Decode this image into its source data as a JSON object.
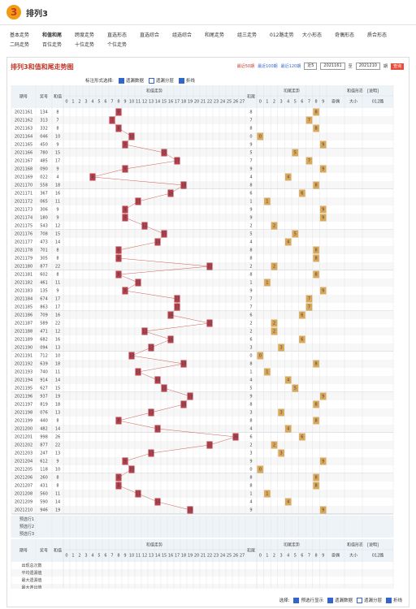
{
  "header": {
    "logo": "3",
    "title": "排列3"
  },
  "nav": [
    "基本走势",
    "和值和尾",
    "跨度走势",
    "直选形态",
    "直选综合",
    "组选综合",
    "和尾走势",
    "组三走势",
    "012路走势",
    "大小形态",
    "奇偶形态",
    "质合形态",
    "二码走势",
    "百位走势",
    "十位走势",
    "个位走势"
  ],
  "panel": {
    "title": "排列3和值和尾走势图",
    "periods": [
      "最近50期",
      "最近100期",
      "最近120期"
    ],
    "select": "近5",
    "from": "2021161",
    "to_label": "至",
    "to": "2021210",
    "period_unit": "期",
    "button": "查询"
  },
  "options": {
    "label": "标注形式选择:",
    "items": [
      "遗漏数据",
      "遗漏分层",
      "折线"
    ]
  },
  "table": {
    "headers": {
      "issue": "期号",
      "number": "奖号",
      "sum": "和值",
      "sum_trend": "和值走势",
      "tail": "和尾",
      "tail_trend": "和尾走势",
      "shape": "和值形态",
      "shape_note": "[说明]",
      "odd_even": "奇偶",
      "big_small": "大小",
      "route": "012路"
    },
    "sum_columns": [
      0,
      1,
      2,
      3,
      4,
      5,
      6,
      7,
      8,
      9,
      10,
      11,
      12,
      13,
      14,
      15,
      16,
      17,
      18,
      19,
      20,
      21,
      22,
      23,
      24,
      25,
      26,
      27
    ],
    "tail_columns": [
      0,
      1,
      2,
      3,
      4,
      5,
      6,
      7,
      8,
      9
    ],
    "rows": [
      [
        "2021161",
        "134",
        8,
        8
      ],
      [
        "2021162",
        "313",
        7,
        7
      ],
      [
        "2021163",
        "332",
        8,
        8
      ],
      [
        "2021164",
        "046",
        10,
        0
      ],
      [
        "2021165",
        "450",
        9,
        9
      ],
      [
        "2021166",
        "780",
        15,
        5
      ],
      [
        "2021167",
        "485",
        17,
        7
      ],
      [
        "2021168",
        "090",
        9,
        9
      ],
      [
        "2021169",
        "022",
        4,
        4
      ],
      [
        "2021170",
        "558",
        18,
        8
      ],
      [
        "2021171",
        "367",
        16,
        6
      ],
      [
        "2021172",
        "065",
        11,
        1
      ],
      [
        "2021173",
        "306",
        9,
        9
      ],
      [
        "2021174",
        "180",
        9,
        9
      ],
      [
        "2021175",
        "543",
        12,
        2
      ],
      [
        "2021176",
        "708",
        15,
        5
      ],
      [
        "2021177",
        "473",
        14,
        4
      ],
      [
        "2021178",
        "701",
        8,
        8
      ],
      [
        "2021179",
        "305",
        8,
        8
      ],
      [
        "2021180",
        "877",
        22,
        2
      ],
      [
        "2021181",
        "602",
        8,
        8
      ],
      [
        "2021182",
        "461",
        11,
        1
      ],
      [
        "2021183",
        "135",
        9,
        9
      ],
      [
        "2021184",
        "674",
        17,
        7
      ],
      [
        "2021185",
        "863",
        17,
        7
      ],
      [
        "2021186",
        "709",
        16,
        6
      ],
      [
        "2021187",
        "589",
        22,
        2
      ],
      [
        "2021188",
        "471",
        12,
        2
      ],
      [
        "2021189",
        "682",
        16,
        6
      ],
      [
        "2021190",
        "094",
        13,
        3
      ],
      [
        "2021191",
        "712",
        10,
        0
      ],
      [
        "2021192",
        "639",
        18,
        8
      ],
      [
        "2021193",
        "740",
        11,
        1
      ],
      [
        "2021194",
        "914",
        14,
        4
      ],
      [
        "2021195",
        "627",
        15,
        5
      ],
      [
        "2021196",
        "937",
        19,
        9
      ],
      [
        "2021197",
        "819",
        18,
        8
      ],
      [
        "2021198",
        "076",
        13,
        3
      ],
      [
        "2021199",
        "440",
        8,
        8
      ],
      [
        "2021200",
        "482",
        14,
        4
      ],
      [
        "2021201",
        "998",
        26,
        6
      ],
      [
        "2021202",
        "877",
        22,
        2
      ],
      [
        "2021203",
        "247",
        13,
        3
      ],
      [
        "2021204",
        "612",
        9,
        9
      ],
      [
        "2021205",
        "118",
        10,
        0
      ],
      [
        "2021206",
        "260",
        8,
        8
      ],
      [
        "2021207",
        "431",
        8,
        8
      ],
      [
        "2021208",
        "560",
        11,
        1
      ],
      [
        "2021209",
        "590",
        14,
        4
      ],
      [
        "2021210",
        "946",
        19,
        9
      ]
    ],
    "preselect": [
      "预选行1",
      "预选行2",
      "预选行3"
    ],
    "stats": [
      "出现总次数",
      "平均遗漏值",
      "最大遗漏值",
      "最大连出值"
    ]
  },
  "footer": {
    "label": "选择:",
    "items": [
      "预选行显示",
      "遗漏数据",
      "遗漏分层",
      "折线"
    ]
  }
}
